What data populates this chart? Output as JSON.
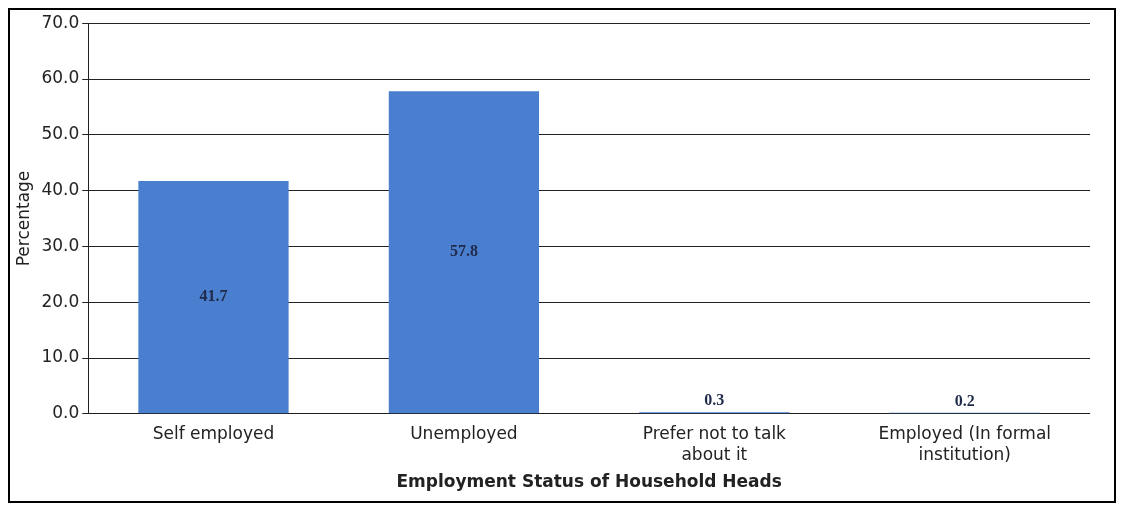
{
  "chart_data": {
    "type": "bar",
    "xlabel": "Employment Status of Household Heads",
    "ylabel": "Percentage",
    "categories": [
      "Self employed",
      "Unemployed",
      "Prefer not to talk about it",
      "Employed (In formal institution)"
    ],
    "values": [
      41.7,
      57.8,
      0.3,
      0.2
    ],
    "color": "#4a7fcf",
    "ylim": [
      0,
      70
    ],
    "yticks": [
      {
        "value": 0,
        "label": "0.0"
      },
      {
        "value": 10,
        "label": "10.0"
      },
      {
        "value": 20,
        "label": "20.0"
      },
      {
        "value": 30,
        "label": "30.0"
      },
      {
        "value": 40,
        "label": "40.0"
      },
      {
        "value": 50,
        "label": "50.0"
      },
      {
        "value": 60,
        "label": "60.0"
      },
      {
        "value": 70,
        "label": "70.0"
      }
    ],
    "grid": "y",
    "data_labels": true,
    "legend": false
  }
}
